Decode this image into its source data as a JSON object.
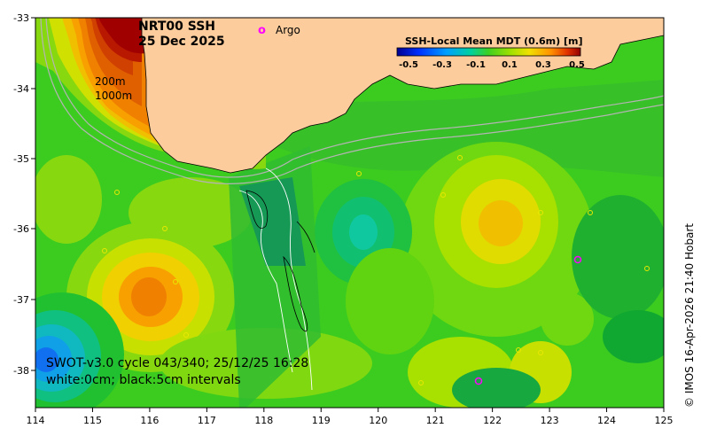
{
  "title": {
    "line1": "NRT00 SSH",
    "line2": "25 Dec 2025"
  },
  "legend": {
    "argo_marker": "o",
    "argo_label": "Argo",
    "colorbar_title": "SSH-Local Mean MDT (0.6m) [m]",
    "colorbar_ticks": [
      "-0.5",
      "-0.3",
      "-0.1",
      "0.1",
      "0.3",
      "0.5"
    ]
  },
  "isobaths": {
    "label_200": "200m",
    "label_1000": "1000m"
  },
  "swot": {
    "line1": "SWOT-v3.0 cycle 043/340; 25/12/25 16:28",
    "line2": "white:0cm; black:5cm intervals"
  },
  "axes": {
    "x_ticks": [
      "114",
      "115",
      "116",
      "117",
      "118",
      "119",
      "120",
      "121",
      "122",
      "123",
      "124",
      "125"
    ],
    "y_ticks": [
      "-33",
      "-34",
      "-35",
      "-36",
      "-37",
      "-38"
    ]
  },
  "credit": "© IMOS 16-Apr-2026 21:40 Hobart",
  "colors": {
    "land": "#fccc9c",
    "argo": "#ff00ff",
    "ocean_base": "#3fcf1e"
  }
}
